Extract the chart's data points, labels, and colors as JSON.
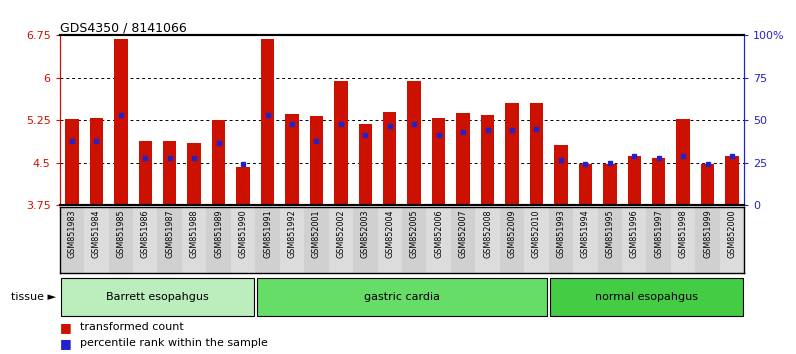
{
  "title": "GDS4350 / 8141066",
  "samples": [
    "GSM851983",
    "GSM851984",
    "GSM851985",
    "GSM851986",
    "GSM851987",
    "GSM851988",
    "GSM851989",
    "GSM851990",
    "GSM851991",
    "GSM851992",
    "GSM852001",
    "GSM852002",
    "GSM852003",
    "GSM852004",
    "GSM852005",
    "GSM852006",
    "GSM852007",
    "GSM852008",
    "GSM852009",
    "GSM852010",
    "GSM851993",
    "GSM851994",
    "GSM851995",
    "GSM851996",
    "GSM851997",
    "GSM851998",
    "GSM851999",
    "GSM852000"
  ],
  "red_values": [
    5.28,
    5.3,
    6.68,
    4.88,
    4.88,
    4.85,
    5.25,
    4.42,
    6.68,
    5.37,
    5.32,
    5.95,
    5.18,
    5.4,
    5.95,
    5.3,
    5.38,
    5.35,
    5.55,
    5.55,
    4.82,
    4.48,
    4.48,
    4.62,
    4.58,
    5.28,
    4.48,
    4.62
  ],
  "blue_values": [
    4.88,
    4.88,
    5.35,
    4.58,
    4.58,
    4.58,
    4.85,
    4.48,
    5.35,
    5.18,
    4.88,
    5.18,
    5.0,
    5.15,
    5.18,
    5.0,
    5.05,
    5.08,
    5.08,
    5.1,
    4.55,
    4.48,
    4.5,
    4.62,
    4.58,
    4.62,
    4.48,
    4.62
  ],
  "groups": [
    {
      "label": "Barrett esopahgus",
      "start": 0,
      "end": 7,
      "color": "#bbeebc"
    },
    {
      "label": "gastric cardia",
      "start": 8,
      "end": 19,
      "color": "#66dd66"
    },
    {
      "label": "normal esopahgus",
      "start": 20,
      "end": 27,
      "color": "#44cc44"
    }
  ],
  "ymin": 3.75,
  "ymax": 6.75,
  "yticks_left": [
    3.75,
    4.5,
    5.25,
    6.0,
    6.75
  ],
  "ytick_left_labels": [
    "3.75",
    "4.5",
    "5.25",
    "6",
    "6.75"
  ],
  "yticks_right": [
    0,
    25,
    50,
    75,
    100
  ],
  "ytick_right_labels": [
    "0",
    "25",
    "50",
    "75",
    "100%"
  ],
  "bar_color": "#cc1100",
  "blue_color": "#2222cc",
  "bar_width": 0.55,
  "grid_lines": [
    4.5,
    5.25,
    6.0
  ],
  "col_colors": [
    "#d0d0d0",
    "#dcdcdc"
  ]
}
